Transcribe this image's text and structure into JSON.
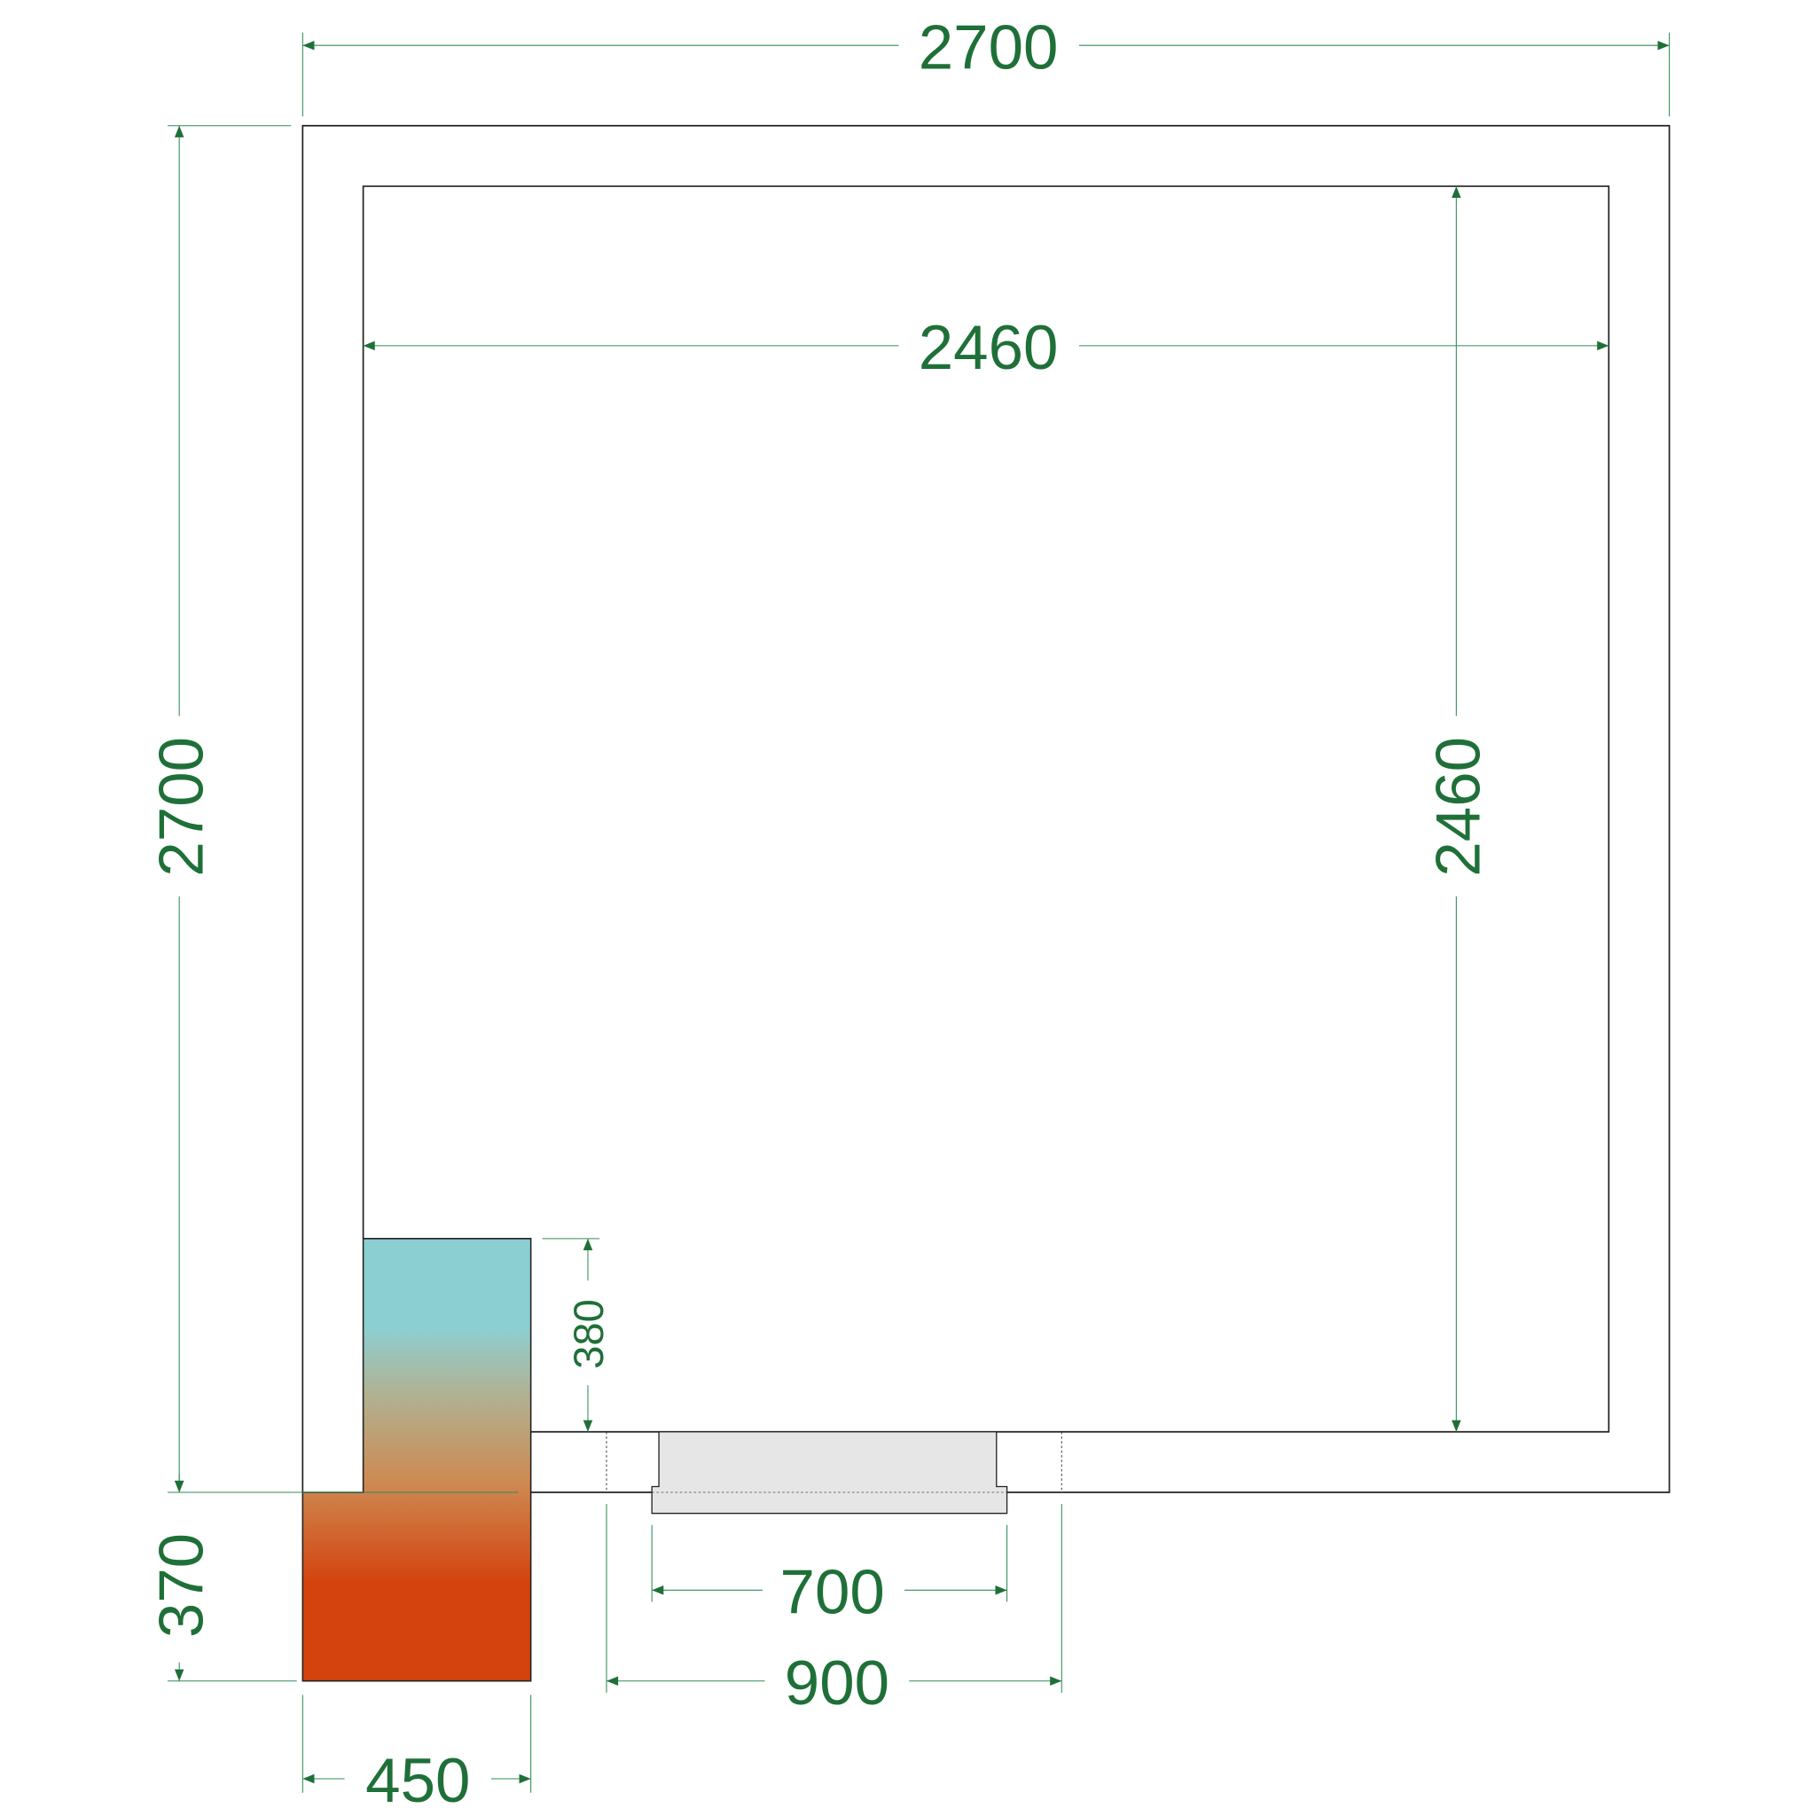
{
  "dimensions": {
    "outer_width": "2700",
    "inner_width": "2460",
    "outer_depth": "2700",
    "inner_depth": "2460",
    "unit_height": "380",
    "unit_projection": "370",
    "unit_width": "450",
    "door_clear": "700",
    "door_opening": "900"
  },
  "colors": {
    "dimension_text": "#1f7038",
    "unit_top": "#8ccfd2",
    "unit_bottom": "#d4420e",
    "door_fill": "#e6e6e6"
  }
}
